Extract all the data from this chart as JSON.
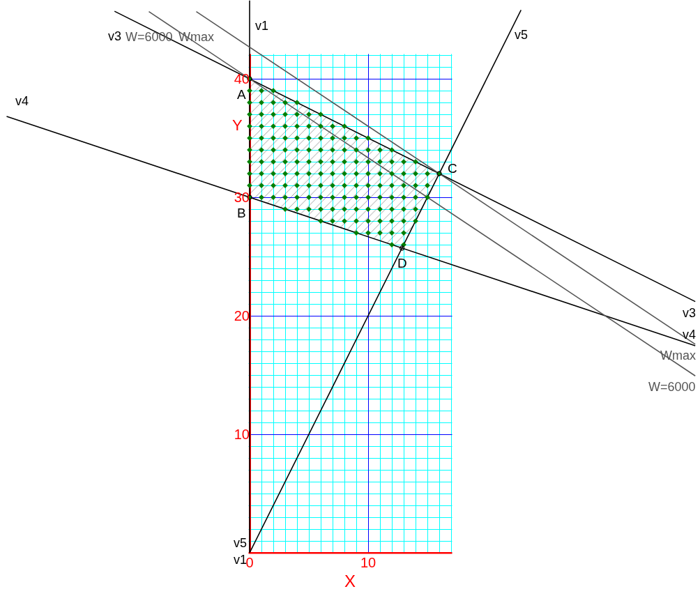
{
  "chart_data": {
    "type": "line",
    "xlabel": "X",
    "ylabel": "Y",
    "xlim": [
      -21.06,
      38.0
    ],
    "ylim": [
      -1.0,
      46.65
    ],
    "xticks": [
      0,
      {
        "value": 1,
        "label": null
      },
      {
        "value": 2,
        "label": null
      },
      {
        "value": 3,
        "label": null
      },
      {
        "value": 4,
        "label": null
      },
      {
        "value": 5,
        "label": null
      },
      {
        "value": 6,
        "label": null
      },
      {
        "value": 7,
        "label": null
      },
      {
        "value": 8,
        "label": null
      },
      {
        "value": 9,
        "label": null
      },
      10,
      {
        "value": 11,
        "label": null
      },
      {
        "value": 12,
        "label": null
      },
      {
        "value": 13,
        "label": null
      },
      {
        "value": 14,
        "label": null
      },
      {
        "value": 15,
        "label": null
      },
      {
        "value": 16,
        "label": null
      },
      {
        "value": 17,
        "label": null
      }
    ],
    "yticks": [
      {
        "value": 0,
        "label": null
      },
      {
        "value": 1,
        "label": null
      },
      {
        "value": 2,
        "label": null
      },
      {
        "value": 3,
        "label": null
      },
      {
        "value": 4,
        "label": null
      },
      {
        "value": 5,
        "label": null
      },
      {
        "value": 6,
        "label": null
      },
      {
        "value": 7,
        "label": null
      },
      {
        "value": 8,
        "label": null
      },
      {
        "value": 9,
        "label": null
      },
      10,
      {
        "value": 11,
        "label": null
      },
      {
        "value": 12,
        "label": null
      },
      {
        "value": 13,
        "label": null
      },
      {
        "value": 14,
        "label": null
      },
      {
        "value": 15,
        "label": null
      },
      {
        "value": 16,
        "label": null
      },
      {
        "value": 17,
        "label": null
      },
      {
        "value": 18,
        "label": null
      },
      {
        "value": 19,
        "label": null
      },
      20,
      {
        "value": 21,
        "label": null
      },
      {
        "value": 22,
        "label": null
      },
      {
        "value": 23,
        "label": null
      },
      {
        "value": 24,
        "label": null
      },
      {
        "value": 25,
        "label": null
      },
      {
        "value": 26,
        "label": null
      },
      {
        "value": 27,
        "label": null
      },
      {
        "value": 28,
        "label": null
      },
      {
        "value": 29,
        "label": null
      },
      30,
      {
        "value": 31,
        "label": null
      },
      {
        "value": 32,
        "label": null
      },
      {
        "value": 33,
        "label": null
      },
      {
        "value": 34,
        "label": null
      },
      {
        "value": 35,
        "label": null
      },
      {
        "value": 36,
        "label": null
      },
      {
        "value": 37,
        "label": null
      },
      {
        "value": 38,
        "label": null
      },
      {
        "value": 39,
        "label": null
      },
      40,
      {
        "value": 41,
        "label": null
      },
      {
        "value": 42,
        "label": null
      }
    ],
    "grid": true,
    "series": [
      {
        "type": "area",
        "color": "#000000",
        "x": [
          0,
          0,
          12.86,
          16
        ],
        "values": [
          40,
          30,
          25.71,
          32
        ]
      },
      {
        "name": "v1",
        "color": "#000000",
        "x": [
          0,
          0
        ],
        "values": [
          0,
          46.6
        ]
      },
      {
        "name": "v3",
        "color": "#000000",
        "x": [
          -11.4,
          37.6
        ],
        "values": [
          45.7,
          21.2
        ]
      },
      {
        "name": "v4",
        "color": "#000000",
        "x": [
          -20.5,
          37.6
        ],
        "values": [
          36.83,
          17.47
        ]
      },
      {
        "name": "v5",
        "color": "#000000",
        "x": [
          0,
          22.9
        ],
        "values": [
          0,
          45.8
        ]
      },
      {
        "name": "Wmax",
        "color": "#555555",
        "x": [
          -4.5,
          37.6
        ],
        "values": [
          45.67,
          17.6
        ]
      },
      {
        "name": "W=6000",
        "color": "#555555",
        "x": [
          -8.5,
          37.6
        ],
        "values": [
          45.67,
          14.93
        ]
      },
      {
        "type": "scatter",
        "marker": "diamond",
        "color": "#007f00",
        "x": [
          0,
          0,
          1,
          2,
          0,
          1,
          2,
          3,
          4,
          0,
          1,
          2,
          3,
          4,
          5,
          6,
          0,
          1,
          2,
          3,
          4,
          5,
          6,
          7,
          8,
          0,
          1,
          2,
          3,
          4,
          5,
          6,
          7,
          8,
          9,
          10,
          0,
          1,
          2,
          3,
          4,
          5,
          6,
          7,
          8,
          9,
          10,
          11,
          12,
          0,
          1,
          2,
          3,
          4,
          5,
          6,
          7,
          8,
          9,
          10,
          11,
          12,
          13,
          14,
          0,
          1,
          2,
          3,
          4,
          5,
          6,
          7,
          8,
          9,
          10,
          11,
          12,
          13,
          14,
          15,
          16,
          0,
          1,
          2,
          3,
          4,
          5,
          6,
          7,
          8,
          9,
          10,
          11,
          12,
          13,
          14,
          15,
          0,
          1,
          2,
          3,
          4,
          5,
          6,
          7,
          8,
          9,
          10,
          11,
          12,
          13,
          14,
          15,
          3,
          4,
          5,
          6,
          7,
          8,
          9,
          10,
          11,
          12,
          13,
          14,
          6,
          7,
          8,
          9,
          10,
          11,
          12,
          13,
          14,
          9,
          10,
          11,
          12,
          13,
          12,
          13
        ],
        "values": [
          40,
          39,
          39,
          39,
          38,
          38,
          38,
          38,
          38,
          37,
          37,
          37,
          37,
          37,
          37,
          37,
          36,
          36,
          36,
          36,
          36,
          36,
          36,
          36,
          36,
          35,
          35,
          35,
          35,
          35,
          35,
          35,
          35,
          35,
          35,
          35,
          34,
          34,
          34,
          34,
          34,
          34,
          34,
          34,
          34,
          34,
          34,
          34,
          34,
          33,
          33,
          33,
          33,
          33,
          33,
          33,
          33,
          33,
          33,
          33,
          33,
          33,
          33,
          33,
          32,
          32,
          32,
          32,
          32,
          32,
          32,
          32,
          32,
          32,
          32,
          32,
          32,
          32,
          32,
          32,
          32,
          31,
          31,
          31,
          31,
          31,
          31,
          31,
          31,
          31,
          31,
          31,
          31,
          31,
          31,
          31,
          31,
          30,
          30,
          30,
          30,
          30,
          30,
          30,
          30,
          30,
          30,
          30,
          30,
          30,
          30,
          30,
          30,
          29,
          29,
          29,
          29,
          29,
          29,
          29,
          29,
          29,
          29,
          29,
          29,
          28,
          28,
          28,
          28,
          28,
          28,
          28,
          28,
          28,
          27,
          27,
          27,
          27,
          27,
          26,
          26
        ]
      },
      {
        "type": "scatter",
        "marker": "circle",
        "color": "#000000",
        "x": [
          0,
          0,
          16,
          12.86
        ],
        "values": [
          40,
          30,
          32,
          25.71
        ],
        "value_labels": [
          "A",
          "B",
          "C",
          "D"
        ]
      }
    ]
  }
}
